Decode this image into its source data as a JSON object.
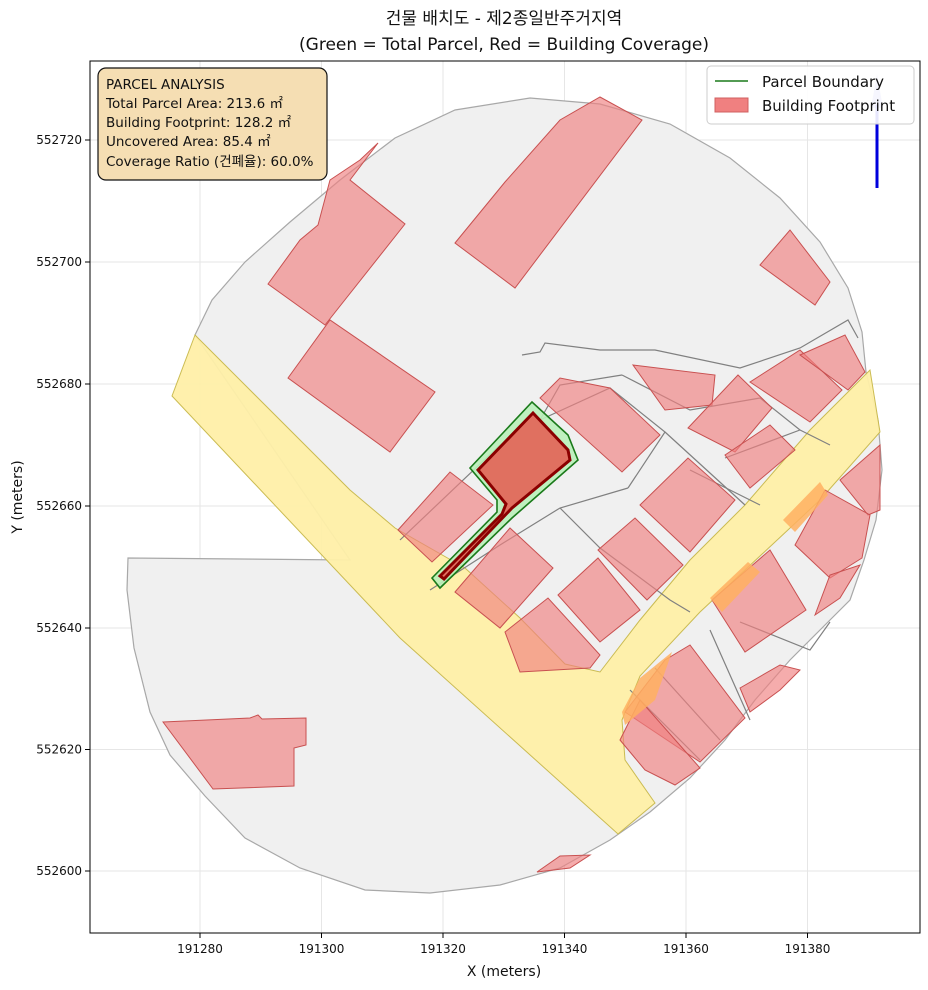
{
  "title_line1": "건물 배치도 - 제2종일반주거지역",
  "title_line2": "(Green = Total Parcel, Red = Building Coverage)",
  "x_label": "X (meters)",
  "y_label": "Y (meters)",
  "x_ticks": [
    "191280",
    "191300",
    "191320",
    "191340",
    "191360",
    "191380"
  ],
  "y_ticks": [
    "552600",
    "552620",
    "552640",
    "552660",
    "552680",
    "552700",
    "552720"
  ],
  "analysis": {
    "heading": "PARCEL ANALYSIS",
    "total": "Total Parcel Area: 213.6 ㎡",
    "footprint": "Building Footprint: 128.2 ㎡",
    "uncovered": "Uncovered Area: 85.4 ㎡",
    "ratio": "Coverage Ratio (건폐율): 60.0%"
  },
  "legend": {
    "parcel": "Parcel Boundary",
    "building": "Building Footprint"
  },
  "colors": {
    "parcel_line": "#1a7a1a",
    "parcel_fill": "#b9f0b9",
    "building_fill": "#f08080",
    "target_building": "#e07060",
    "target_outline": "#8b0000",
    "road": "#fff0a8",
    "ground": "#f0f0f0",
    "north_arrow": "#0000dd",
    "info_box": "#f5deb3"
  }
}
